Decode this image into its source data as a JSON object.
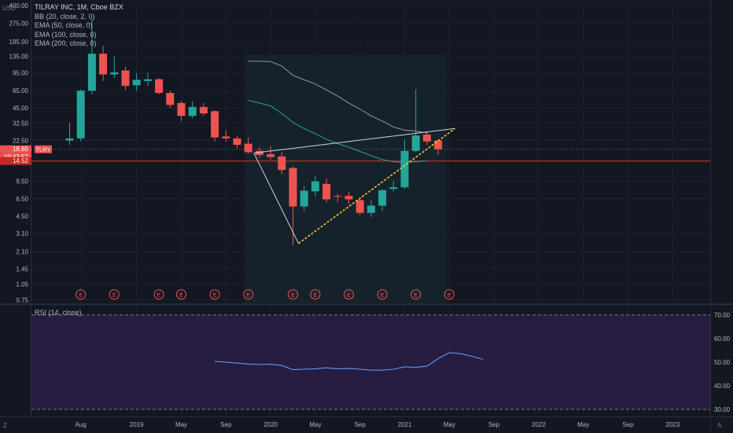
{
  "legend": {
    "title": "TILRAY INC, 1M, Cboe BZX",
    "indicators": [
      "BB (20, close, 2, 0)",
      "EMA (50, close, 0)",
      "EMA (100, close, 0)",
      "EMA (200, close, 0)"
    ],
    "rsi": "RSI (14, close)"
  },
  "corner": {
    "currency": "USD",
    "z": "Z",
    "a": "A"
  },
  "colors": {
    "background": "#131722",
    "grid": "#1c2030",
    "up": "#26a69a",
    "down": "#ef5350",
    "rsi_line": "#5b9cf6",
    "rsi_fill": "#2a1f45",
    "trendline": "#ffcc33",
    "pattern_line": "#d1d4dc",
    "ema_line": "#787b86",
    "hline": "#c62828"
  },
  "badges": {
    "last_price": "18.65",
    "countdown": "19:42:57",
    "ticker": "TLRY",
    "hline_price": "14.52"
  },
  "chart_data": {
    "type": "candlestick",
    "scale": "log",
    "y_ticks": [
      "400.00",
      "275.00",
      "185.00",
      "135.00",
      "95.00",
      "65.00",
      "45.00",
      "32.50",
      "22.50",
      "9.50",
      "6.50",
      "4.50",
      "3.10",
      "2.10",
      "1.45",
      "1.05",
      "0.75"
    ],
    "x_ticks": [
      "Aug",
      "2019",
      "May",
      "Sep",
      "2020",
      "May",
      "Sep",
      "2021",
      "May",
      "Sep",
      "2022",
      "May",
      "Sep",
      "2023"
    ],
    "earnings_marker_label": "E",
    "candles": [
      {
        "date": "2018-07",
        "o": 22.5,
        "h": 33.0,
        "l": 20.5,
        "c": 23.5
      },
      {
        "date": "2018-08",
        "o": 23.5,
        "h": 67.0,
        "l": 22.0,
        "c": 65.0
      },
      {
        "date": "2018-09",
        "o": 65.0,
        "h": 300.0,
        "l": 60.0,
        "c": 143.0
      },
      {
        "date": "2018-10",
        "o": 143.0,
        "h": 170.0,
        "l": 80.0,
        "c": 92.0
      },
      {
        "date": "2018-11",
        "o": 92.0,
        "h": 135.0,
        "l": 85.0,
        "c": 96.0
      },
      {
        "date": "2018-12",
        "o": 100.0,
        "h": 108.0,
        "l": 66.0,
        "c": 72.0
      },
      {
        "date": "2019-01",
        "o": 73.0,
        "h": 95.0,
        "l": 65.0,
        "c": 82.0
      },
      {
        "date": "2019-02",
        "o": 80.0,
        "h": 95.0,
        "l": 72.0,
        "c": 83.0
      },
      {
        "date": "2019-03",
        "o": 83.0,
        "h": 85.0,
        "l": 60.0,
        "c": 62.0
      },
      {
        "date": "2019-04",
        "o": 62.0,
        "h": 65.0,
        "l": 45.0,
        "c": 48.0
      },
      {
        "date": "2019-05",
        "o": 50.0,
        "h": 52.0,
        "l": 34.0,
        "c": 38.0
      },
      {
        "date": "2019-06",
        "o": 38.0,
        "h": 52.0,
        "l": 36.0,
        "c": 46.0
      },
      {
        "date": "2019-07",
        "o": 46.0,
        "h": 50.0,
        "l": 38.0,
        "c": 40.0
      },
      {
        "date": "2019-08",
        "o": 42.0,
        "h": 43.0,
        "l": 22.0,
        "c": 24.0
      },
      {
        "date": "2019-09",
        "o": 24.5,
        "h": 28.0,
        "l": 22.0,
        "c": 23.5
      },
      {
        "date": "2019-10",
        "o": 23.5,
        "h": 25.0,
        "l": 19.0,
        "c": 20.5
      },
      {
        "date": "2019-11",
        "o": 21.0,
        "h": 24.0,
        "l": 17.0,
        "c": 17.5
      },
      {
        "date": "2019-12",
        "o": 18.0,
        "h": 19.5,
        "l": 15.5,
        "c": 16.5
      },
      {
        "date": "2020-01",
        "o": 16.8,
        "h": 20.0,
        "l": 15.0,
        "c": 15.8
      },
      {
        "date": "2020-02",
        "o": 16.0,
        "h": 17.5,
        "l": 11.0,
        "c": 12.0
      },
      {
        "date": "2020-03",
        "o": 12.5,
        "h": 13.0,
        "l": 2.4,
        "c": 5.5
      },
      {
        "date": "2020-04",
        "o": 5.5,
        "h": 8.5,
        "l": 5.0,
        "c": 7.7
      },
      {
        "date": "2020-05",
        "o": 7.6,
        "h": 10.5,
        "l": 6.8,
        "c": 9.4
      },
      {
        "date": "2020-06",
        "o": 8.9,
        "h": 10.0,
        "l": 6.0,
        "c": 6.4
      },
      {
        "date": "2020-07",
        "o": 6.9,
        "h": 7.2,
        "l": 6.0,
        "c": 6.8
      },
      {
        "date": "2020-08",
        "o": 6.9,
        "h": 7.5,
        "l": 5.8,
        "c": 6.4
      },
      {
        "date": "2020-09",
        "o": 6.3,
        "h": 6.5,
        "l": 4.6,
        "c": 4.8
      },
      {
        "date": "2020-10",
        "o": 4.8,
        "h": 6.3,
        "l": 4.4,
        "c": 5.6
      },
      {
        "date": "2020-11",
        "o": 5.6,
        "h": 8.0,
        "l": 5.0,
        "c": 7.8
      },
      {
        "date": "2020-12",
        "o": 8.0,
        "h": 9.5,
        "l": 7.6,
        "c": 8.3
      },
      {
        "date": "2021-01",
        "o": 8.3,
        "h": 23.0,
        "l": 8.0,
        "c": 18.0
      },
      {
        "date": "2021-02",
        "o": 18.0,
        "h": 67.0,
        "l": 17.5,
        "c": 25.0
      },
      {
        "date": "2021-03",
        "o": 25.5,
        "h": 27.0,
        "l": 20.5,
        "c": 22.0
      },
      {
        "date": "2021-04",
        "o": 22.5,
        "h": 23.0,
        "l": 16.5,
        "c": 18.65
      }
    ],
    "earnings_months": [
      "2018-08",
      "2018-11",
      "2019-03",
      "2019-05",
      "2019-08",
      "2019-11",
      "2020-03",
      "2020-05",
      "2020-08",
      "2020-11",
      "2021-02",
      "2021-05"
    ],
    "horizontal_line": 14.52,
    "ema_fast": [
      [
        16,
        53
      ],
      [
        17,
        50
      ],
      [
        18,
        47
      ],
      [
        19,
        40
      ],
      [
        20,
        33
      ],
      [
        21,
        29
      ],
      [
        22,
        26
      ],
      [
        23,
        23
      ],
      [
        24,
        21
      ],
      [
        25,
        19.5
      ],
      [
        26,
        17.8
      ],
      [
        27,
        16.3
      ],
      [
        28,
        15.0
      ],
      [
        29,
        14.3
      ],
      [
        30,
        14.0
      ],
      [
        31,
        14.3
      ],
      [
        32,
        14.6
      ]
    ],
    "ema_slow": [
      [
        16,
        122
      ],
      [
        17,
        122
      ],
      [
        18,
        121
      ],
      [
        19,
        110
      ],
      [
        20,
        90
      ],
      [
        21,
        82
      ],
      [
        22,
        75
      ],
      [
        23,
        66
      ],
      [
        24,
        58
      ],
      [
        25,
        50
      ],
      [
        26,
        44
      ],
      [
        27,
        38
      ],
      [
        28,
        34
      ],
      [
        29,
        30
      ],
      [
        30,
        28
      ],
      [
        31,
        27.5
      ],
      [
        32,
        26.5
      ]
    ],
    "pattern_lines": [
      {
        "from": [
          16.5,
          17.2
        ],
        "to": [
          20.5,
          2.5
        ]
      },
      {
        "from": [
          16.5,
          17.2
        ],
        "to": [
          34.5,
          29.0
        ]
      }
    ],
    "trendline": {
      "from": [
        20.5,
        2.5
      ],
      "to": [
        34.5,
        29.0
      ]
    },
    "rsi": {
      "name": "RSI (14, close)",
      "ylim": [
        25,
        75
      ],
      "ticks": [
        "70.00",
        "60.00",
        "50.00",
        "40.00",
        "30.00"
      ],
      "bands": [
        30,
        70
      ],
      "series": [
        [
          13,
          50.3
        ],
        [
          14,
          50.0
        ],
        [
          15,
          49.6
        ],
        [
          16,
          49.2
        ],
        [
          17,
          49.0
        ],
        [
          18,
          49.1
        ],
        [
          19,
          48.6
        ],
        [
          20,
          46.8
        ],
        [
          21,
          47.0
        ],
        [
          22,
          47.2
        ],
        [
          23,
          47.6
        ],
        [
          24,
          47.2
        ],
        [
          25,
          47.3
        ],
        [
          26,
          47.0
        ],
        [
          27,
          46.6
        ],
        [
          28,
          46.6
        ],
        [
          29,
          47.0
        ],
        [
          30,
          48.0
        ],
        [
          31,
          47.8
        ],
        [
          32,
          48.3
        ],
        [
          33,
          51.5
        ],
        [
          34,
          54.0
        ],
        [
          35,
          53.6
        ],
        [
          36,
          52.5
        ],
        [
          37,
          51.2
        ]
      ]
    }
  }
}
